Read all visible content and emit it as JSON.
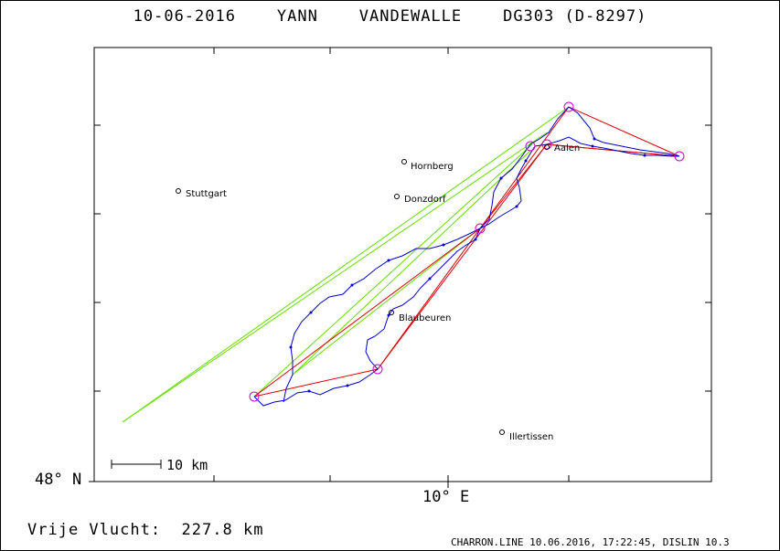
{
  "title": "10-06-2016    YANN    VANDEWALLE    DG303 (D-8297)",
  "axis": {
    "lat_label": "48° N",
    "lon_label": "10° E"
  },
  "scale_bar": {
    "label": "10 km"
  },
  "flight": {
    "label": "Vrije Vlucht:",
    "distance": "227.8 km"
  },
  "footer": "CHARRON.LINE 10.06.2016, 17:22:45, DISLIN 10.3",
  "towns": [
    {
      "name": "Stuttgart"
    },
    {
      "name": "Hornberg"
    },
    {
      "name": "Donzdorf"
    },
    {
      "name": "Aalen"
    },
    {
      "name": "Blaubeuren"
    },
    {
      "name": "Illertissen"
    }
  ],
  "colors": {
    "track": "#0000cc",
    "task": "#dd0000",
    "glide": "#66dd00",
    "turnpoint": "#cc00cc"
  }
}
